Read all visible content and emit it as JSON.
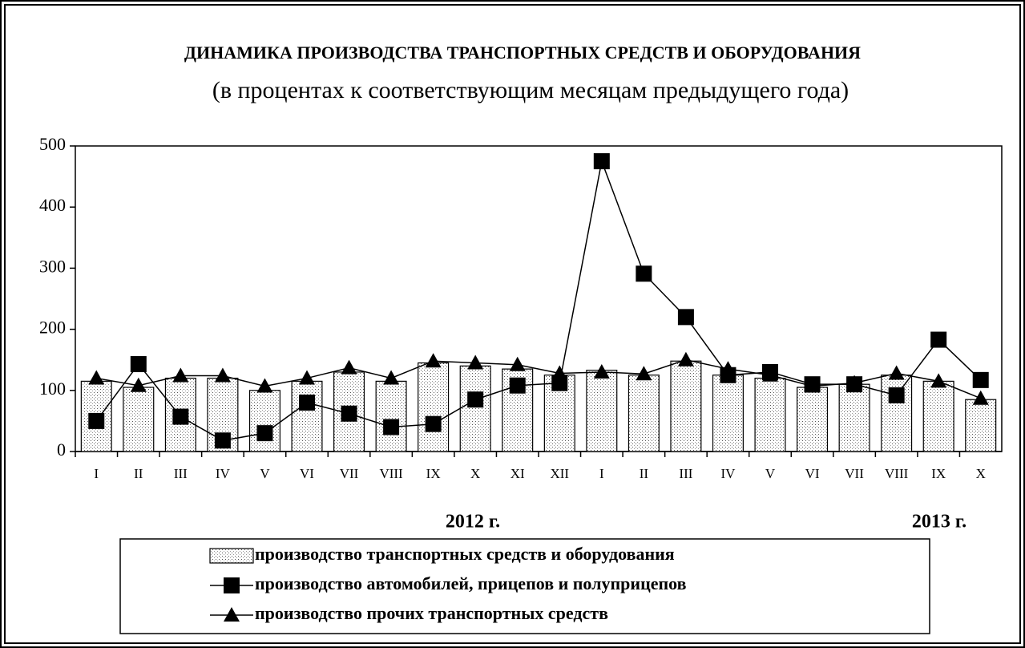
{
  "chart_data": {
    "type": "bar",
    "title": "ДИНАМИКА ПРОИЗВОДСТВА ТРАНСПОРТНЫХ СРЕДСТВ И ОБОРУДОВАНИЯ",
    "subtitle": "(в процентах к соответствующим месяцам предыдущего года)",
    "categories": [
      "I",
      "II",
      "III",
      "IV",
      "V",
      "VI",
      "VII",
      "VIII",
      "IX",
      "X",
      "XI",
      "XII",
      "I",
      "II",
      "III",
      "IV",
      "V",
      "VI",
      "VII",
      "VIII",
      "IX",
      "X"
    ],
    "annotations": [
      "2012 г.",
      "2013 г."
    ],
    "series": [
      {
        "name": "производство транспортных средств и оборудования",
        "kind": "bar",
        "color": "#ffffff",
        "values": [
          115,
          105,
          120,
          120,
          100,
          115,
          130,
          115,
          145,
          140,
          135,
          125,
          133,
          125,
          148,
          125,
          120,
          105,
          110,
          125,
          115,
          85
        ]
      },
      {
        "name": "производство автомобилей, прицепов и полуприцепов",
        "kind": "line",
        "marker": "square",
        "color": "#000000",
        "values": [
          50,
          143,
          57,
          18,
          30,
          80,
          62,
          40,
          45,
          85,
          108,
          112,
          475,
          291,
          220,
          125,
          130,
          110,
          110,
          92,
          183,
          117
        ]
      },
      {
        "name": "производство прочих транспортных средств",
        "kind": "line",
        "marker": "triangle",
        "color": "#000000",
        "values": [
          120,
          108,
          124,
          124,
          107,
          120,
          137,
          120,
          148,
          145,
          142,
          128,
          130,
          127,
          150,
          135,
          125,
          107,
          112,
          128,
          115,
          87
        ]
      }
    ],
    "ylim": [
      0,
      500
    ],
    "yticks": [
      0,
      100,
      200,
      300,
      400,
      500
    ],
    "grid": false
  }
}
